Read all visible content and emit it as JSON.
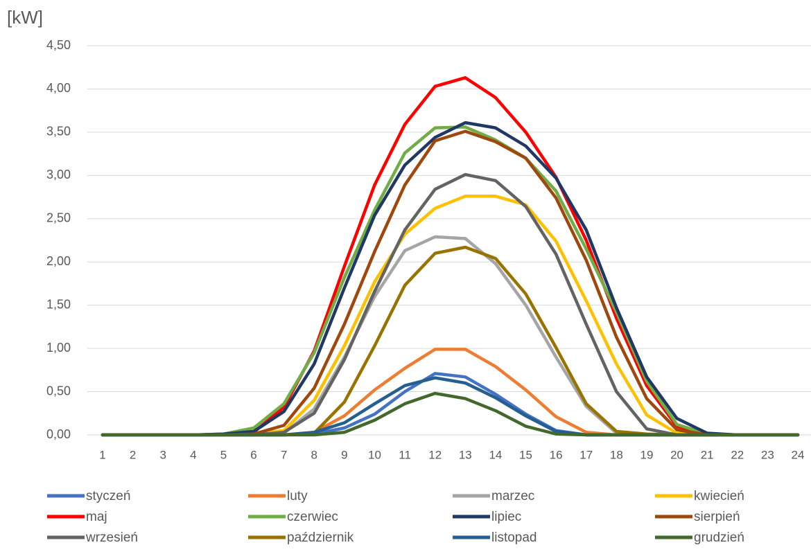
{
  "chart_data": {
    "type": "line",
    "y_label": "[kW]",
    "categories": [
      "1",
      "2",
      "3",
      "4",
      "5",
      "6",
      "7",
      "8",
      "9",
      "10",
      "11",
      "12",
      "13",
      "14",
      "15",
      "16",
      "17",
      "18",
      "19",
      "20",
      "21",
      "22",
      "23",
      "24"
    ],
    "ylim": [
      0,
      4.5
    ],
    "yticks": [
      {
        "value": 0,
        "label": "0,00"
      },
      {
        "value": 0.5,
        "label": "0,50"
      },
      {
        "value": 1,
        "label": "1,00"
      },
      {
        "value": 1.5,
        "label": "1,50"
      },
      {
        "value": 2,
        "label": "2,00"
      },
      {
        "value": 2.5,
        "label": "2,50"
      },
      {
        "value": 3,
        "label": "3,00"
      },
      {
        "value": 3.5,
        "label": "3,50"
      },
      {
        "value": 4,
        "label": "4,00"
      },
      {
        "value": 4.5,
        "label": "4,50"
      }
    ],
    "grid": true,
    "series": [
      {
        "name": "styczeń",
        "color": "#4472c4",
        "values": [
          0,
          0,
          0,
          0,
          0,
          0,
          0,
          0.01,
          0.08,
          0.24,
          0.5,
          0.71,
          0.67,
          0.47,
          0.24,
          0.05,
          0,
          0,
          0,
          0,
          0,
          0,
          0,
          0
        ]
      },
      {
        "name": "luty",
        "color": "#ed7d31",
        "values": [
          0,
          0,
          0,
          0,
          0,
          0,
          0,
          0.03,
          0.22,
          0.52,
          0.77,
          0.99,
          0.99,
          0.79,
          0.52,
          0.21,
          0.03,
          0,
          0,
          0,
          0,
          0,
          0,
          0
        ]
      },
      {
        "name": "marzec",
        "color": "#a5a5a5",
        "values": [
          0,
          0,
          0,
          0,
          0,
          0,
          0.02,
          0.3,
          0.9,
          1.6,
          2.13,
          2.29,
          2.27,
          1.98,
          1.5,
          0.9,
          0.33,
          0.02,
          0,
          0,
          0,
          0,
          0,
          0
        ]
      },
      {
        "name": "kwiecień",
        "color": "#ffc000",
        "values": [
          0,
          0,
          0,
          0,
          0,
          0.01,
          0.05,
          0.4,
          1.03,
          1.77,
          2.32,
          2.62,
          2.76,
          2.76,
          2.66,
          2.24,
          1.55,
          0.82,
          0.23,
          0.02,
          0,
          0,
          0,
          0
        ]
      },
      {
        "name": "maj",
        "color": "#ff0000",
        "values": [
          0,
          0,
          0,
          0,
          0,
          0.03,
          0.32,
          0.97,
          1.95,
          2.89,
          3.59,
          4.03,
          4.13,
          3.9,
          3.5,
          2.98,
          2.25,
          1.35,
          0.57,
          0.1,
          0.01,
          0,
          0,
          0
        ]
      },
      {
        "name": "czerwiec",
        "color": "#70ad47",
        "values": [
          0,
          0,
          0,
          0,
          0.01,
          0.08,
          0.36,
          0.95,
          1.82,
          2.6,
          3.26,
          3.55,
          3.56,
          3.41,
          3.2,
          2.82,
          2.15,
          1.42,
          0.62,
          0.12,
          0.01,
          0,
          0,
          0
        ]
      },
      {
        "name": "lipiec",
        "color": "#203864",
        "values": [
          0,
          0,
          0,
          0,
          0.01,
          0.04,
          0.27,
          0.82,
          1.7,
          2.54,
          3.12,
          3.44,
          3.61,
          3.55,
          3.34,
          2.97,
          2.37,
          1.47,
          0.67,
          0.19,
          0.02,
          0,
          0,
          0
        ]
      },
      {
        "name": "sierpień",
        "color": "#9e480e",
        "values": [
          0,
          0,
          0,
          0,
          0,
          0.01,
          0.11,
          0.54,
          1.28,
          2.12,
          2.89,
          3.4,
          3.51,
          3.39,
          3.2,
          2.74,
          2.02,
          1.13,
          0.42,
          0.06,
          0,
          0,
          0,
          0
        ]
      },
      {
        "name": "wrzesień",
        "color": "#636363",
        "values": [
          0,
          0,
          0,
          0,
          0,
          0,
          0.03,
          0.25,
          0.87,
          1.66,
          2.37,
          2.84,
          3.01,
          2.94,
          2.64,
          2.09,
          1.28,
          0.5,
          0.07,
          0,
          0,
          0,
          0,
          0
        ]
      },
      {
        "name": "październik",
        "color": "#997300",
        "values": [
          0,
          0,
          0,
          0,
          0,
          0,
          0,
          0.02,
          0.38,
          1.03,
          1.73,
          2.1,
          2.17,
          2.04,
          1.63,
          1.01,
          0.36,
          0.04,
          0.01,
          0,
          0,
          0,
          0,
          0
        ]
      },
      {
        "name": "listopad",
        "color": "#255e91",
        "values": [
          0,
          0,
          0,
          0,
          0,
          0,
          0,
          0.03,
          0.14,
          0.36,
          0.57,
          0.66,
          0.6,
          0.43,
          0.22,
          0.04,
          0,
          0,
          0,
          0,
          0,
          0,
          0,
          0
        ]
      },
      {
        "name": "grudzień",
        "color": "#43682b",
        "values": [
          0,
          0,
          0,
          0,
          0,
          0,
          0,
          0,
          0.03,
          0.17,
          0.36,
          0.48,
          0.42,
          0.28,
          0.1,
          0.01,
          0,
          0,
          0,
          0,
          0,
          0,
          0,
          0
        ]
      }
    ]
  }
}
